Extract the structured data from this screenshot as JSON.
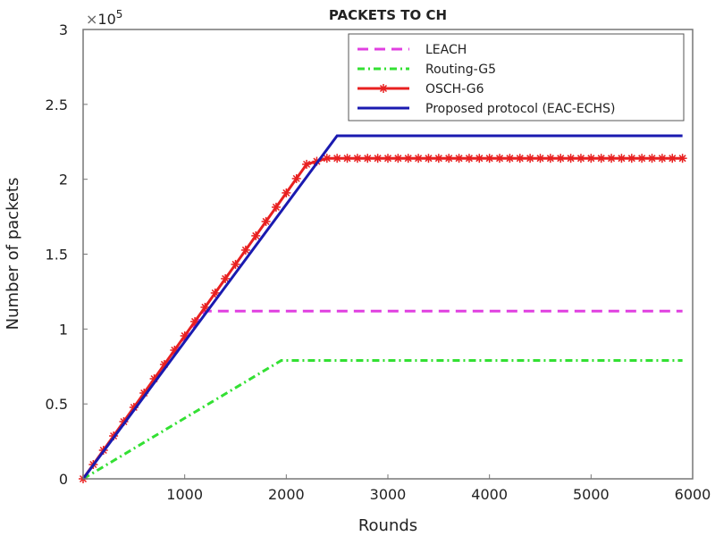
{
  "chart_data": {
    "type": "line",
    "title": "PACKETS TO CH",
    "xlabel": "Rounds",
    "ylabel": "Number of packets",
    "y_multiplier": "×10^5",
    "xlim": [
      0,
      6000
    ],
    "ylim": [
      0,
      300000
    ],
    "xticks": [
      1000,
      2000,
      3000,
      4000,
      5000,
      6000
    ],
    "yticks": [
      0,
      0.5,
      1,
      1.5,
      2,
      2.5,
      3
    ],
    "grid": false,
    "legend_position": "top-right",
    "series": [
      {
        "name": "LEACH",
        "color": "#e040e0",
        "style": "dashed",
        "x": [
          0,
          1190,
          5900
        ],
        "y": [
          0,
          112000,
          112000
        ]
      },
      {
        "name": "Routing-G5",
        "color": "#33e033",
        "style": "dashdot",
        "x": [
          0,
          1950,
          5900
        ],
        "y": [
          0,
          79000,
          79000
        ]
      },
      {
        "name": "OSCH-G6",
        "color": "#e82020",
        "style": "solid-star",
        "x": [
          0,
          2200,
          2400,
          5900
        ],
        "y": [
          0,
          210000,
          214000,
          214000
        ]
      },
      {
        "name": "Proposed protocol (EAC-ECHS)",
        "color": "#1a1ab0",
        "style": "solid",
        "x": [
          0,
          2500,
          5900
        ],
        "y": [
          0,
          229000,
          229000
        ]
      }
    ]
  }
}
